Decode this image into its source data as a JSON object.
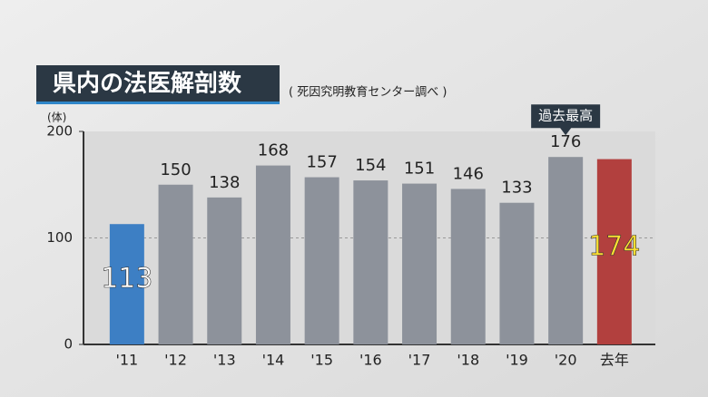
{
  "chart_data": {
    "type": "bar",
    "title": "県内の法医解剖数",
    "subtitle": "( 死因究明教育センター調べ )",
    "y_unit": "(体)",
    "annotation": "過去最高",
    "categories": [
      "'11",
      "'12",
      "'13",
      "'14",
      "'15",
      "'16",
      "'17",
      "'18",
      "'19",
      "'20",
      "去年"
    ],
    "values": [
      113,
      150,
      138,
      168,
      157,
      154,
      151,
      146,
      133,
      176,
      174
    ],
    "color": "#8d929b",
    "colors": [
      "#3d7fc4",
      "#8d929b",
      "#8d929b",
      "#8d929b",
      "#8d929b",
      "#8d929b",
      "#8d929b",
      "#8d929b",
      "#8d929b",
      "#8d929b",
      "#b2403e"
    ],
    "label_colors": [
      "#ffffff",
      "#222222",
      "#222222",
      "#222222",
      "#222222",
      "#222222",
      "#222222",
      "#222222",
      "#222222",
      "#222222",
      "#ffe033"
    ],
    "ylim": [
      0,
      200
    ],
    "yticks": [
      0,
      100,
      200
    ],
    "grid": true
  }
}
